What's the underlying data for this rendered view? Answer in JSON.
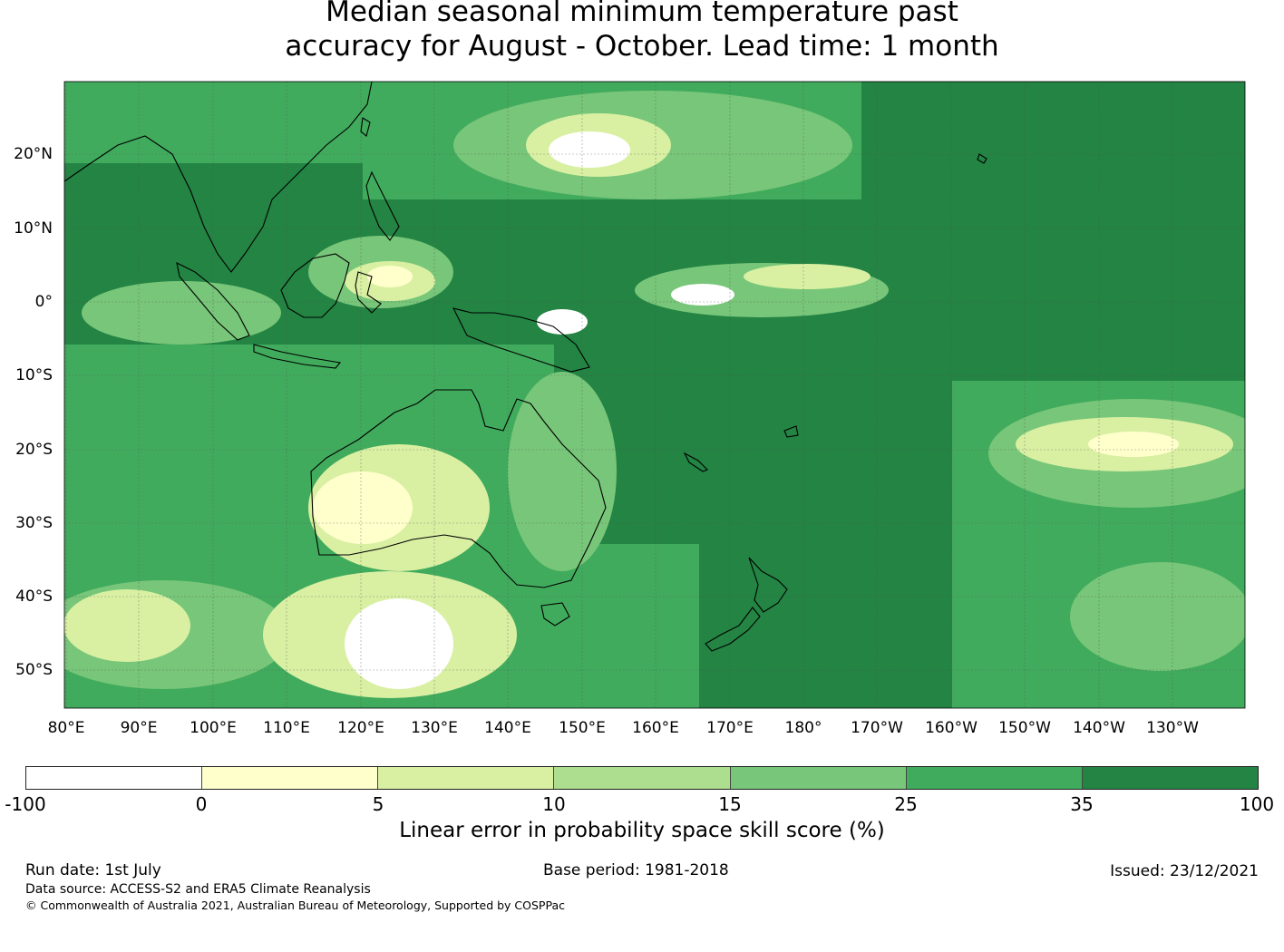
{
  "title_line1": "Median seasonal minimum temperature past",
  "title_line2": "accuracy for August - October. Lead time: 1 month",
  "lat_labels": [
    "20°N",
    "10°N",
    "0°",
    "10°S",
    "20°S",
    "30°S",
    "40°S",
    "50°S"
  ],
  "lon_labels": [
    "80°E",
    "90°E",
    "100°E",
    "110°E",
    "120°E",
    "130°E",
    "140°E",
    "150°E",
    "160°E",
    "170°E",
    "180°",
    "170°W",
    "160°W",
    "150°W",
    "140°W",
    "130°W"
  ],
  "colorbar": {
    "label": "Linear error in probability space skill score (%)",
    "ticks": [
      "-100",
      "0",
      "5",
      "10",
      "15",
      "25",
      "35",
      "100"
    ],
    "colors": [
      "#ffffff",
      "#ffffcc",
      "#d9f0a3",
      "#addd8e",
      "#78c679",
      "#41ab5d",
      "#238443"
    ]
  },
  "footer": {
    "run_date": "Run date: 1st July",
    "base_period": "Base period: 1981-2018",
    "issued": "Issued: 23/12/2021",
    "source": "Data source: ACCESS-S2 and ERA5 Climate Reanalysis",
    "copyright": "© Commonwealth of Australia 2021, Australian Bureau of Meteorology, Supported by COSPPac"
  }
}
